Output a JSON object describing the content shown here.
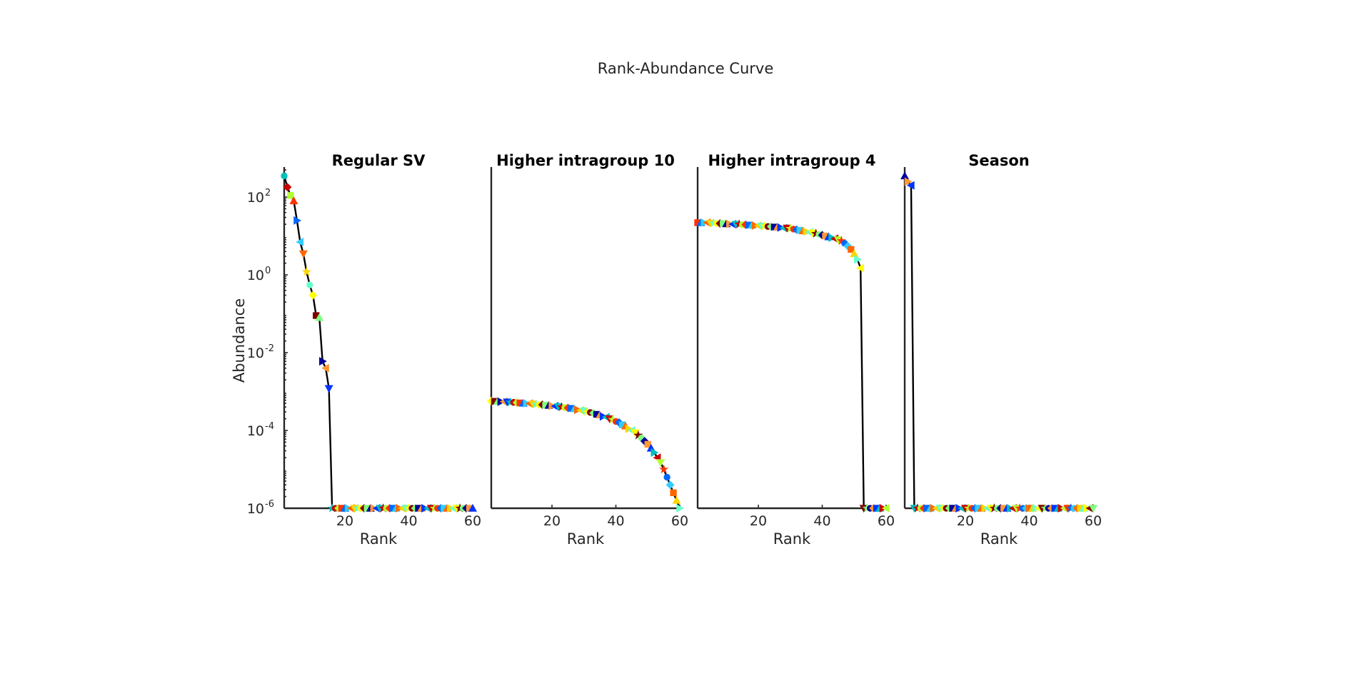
{
  "figure": {
    "title": "Rank-Abundance Curve"
  },
  "chart_data": [
    {
      "type": "line",
      "title": "Regular SV",
      "xlabel": "Rank",
      "ylabel": "Abundance",
      "yscale": "log",
      "xlim": [
        1,
        60
      ],
      "ylim": [
        1e-06,
        500
      ],
      "xticks": [
        20,
        40,
        60
      ],
      "yticks_exponents": [
        -6,
        -4,
        -2,
        0,
        2
      ],
      "yticks_visible": true,
      "x": [
        1,
        2,
        3,
        4,
        5,
        6,
        7,
        8,
        9,
        10,
        11,
        12,
        13,
        14,
        15,
        16,
        17,
        18,
        19,
        20,
        21,
        22,
        23,
        24,
        25,
        26,
        27,
        28,
        29,
        30,
        31,
        32,
        33,
        34,
        35,
        36,
        37,
        38,
        39,
        40,
        41,
        42,
        43,
        44,
        45,
        46,
        47,
        48,
        49,
        50,
        51,
        52,
        53,
        54,
        55,
        56,
        57,
        58,
        59,
        60
      ],
      "y": [
        350,
        180,
        110,
        80,
        25,
        7,
        3.5,
        1.2,
        0.55,
        0.3,
        0.09,
        0.08,
        0.006,
        0.004,
        0.0012,
        1e-06,
        1e-06,
        1e-06,
        1e-06,
        1e-06,
        1e-06,
        1e-06,
        1e-06,
        1e-06,
        1e-06,
        1e-06,
        1e-06,
        1e-06,
        1e-06,
        1e-06,
        1e-06,
        1e-06,
        1e-06,
        1e-06,
        1e-06,
        1e-06,
        1e-06,
        1e-06,
        1e-06,
        1e-06,
        1e-06,
        1e-06,
        1e-06,
        1e-06,
        1e-06,
        1e-06,
        1e-06,
        1e-06,
        1e-06,
        1e-06,
        1e-06,
        1e-06,
        1e-06,
        1e-06,
        1e-06,
        1e-06,
        1e-06,
        1e-06,
        1e-06,
        1e-06
      ]
    },
    {
      "type": "line",
      "title": "Higher intragroup 10",
      "xlabel": "Rank",
      "ylabel": "",
      "yscale": "log",
      "xlim": [
        1,
        60
      ],
      "ylim": [
        1e-06,
        500
      ],
      "xticks": [
        20,
        40,
        60
      ],
      "yticks_exponents": [
        -6,
        -4,
        -2,
        0,
        2
      ],
      "yticks_visible": false,
      "x": [
        1,
        2,
        3,
        4,
        5,
        6,
        7,
        8,
        9,
        10,
        11,
        12,
        13,
        14,
        15,
        16,
        17,
        18,
        19,
        20,
        21,
        22,
        23,
        24,
        25,
        26,
        27,
        28,
        29,
        30,
        31,
        32,
        33,
        34,
        35,
        36,
        37,
        38,
        39,
        40,
        41,
        42,
        43,
        44,
        45,
        46,
        47,
        48,
        49,
        50,
        51,
        52,
        53,
        54,
        55,
        56,
        57,
        58,
        59,
        60
      ],
      "y": [
        0.00057,
        0.00056,
        0.00056,
        0.00055,
        0.00055,
        0.00054,
        0.00053,
        0.00053,
        0.00052,
        0.00051,
        0.0005,
        0.0005,
        0.00049,
        0.00048,
        0.00047,
        0.00046,
        0.00046,
        0.00045,
        0.00044,
        0.00043,
        0.00042,
        0.00041,
        0.0004,
        0.00039,
        0.00038,
        0.00037,
        0.00036,
        0.00034,
        0.00033,
        0.00032,
        0.0003,
        0.00029,
        0.00028,
        0.00026,
        0.00025,
        0.00023,
        0.00022,
        0.0002,
        0.00019,
        0.00017,
        0.00016,
        0.00014,
        0.00013,
        0.00011,
        0.0001,
        8.8e-05,
        7.5e-05,
        6.4e-05,
        5.3e-05,
        4.4e-05,
        3.5e-05,
        2.7e-05,
        2e-05,
        1.5e-05,
        1e-05,
        6.3e-06,
        4e-06,
        2.5e-06,
        1.6e-06,
        1e-06
      ]
    },
    {
      "type": "line",
      "title": "Higher intragroup 4",
      "xlabel": "Rank",
      "ylabel": "",
      "yscale": "log",
      "xlim": [
        1,
        60
      ],
      "ylim": [
        1e-06,
        500
      ],
      "xticks": [
        20,
        40,
        60
      ],
      "yticks_exponents": [
        -6,
        -4,
        -2,
        0,
        2
      ],
      "yticks_visible": false,
      "x": [
        1,
        2,
        3,
        4,
        5,
        6,
        7,
        8,
        9,
        10,
        11,
        12,
        13,
        14,
        15,
        16,
        17,
        18,
        19,
        20,
        21,
        22,
        23,
        24,
        25,
        26,
        27,
        28,
        29,
        30,
        31,
        32,
        33,
        34,
        35,
        36,
        37,
        38,
        39,
        40,
        41,
        42,
        43,
        44,
        45,
        46,
        47,
        48,
        49,
        50,
        51,
        52,
        53,
        54,
        55,
        56,
        57,
        58,
        59,
        60
      ],
      "y": [
        22,
        22,
        22,
        22,
        21.5,
        21.5,
        21,
        21,
        21,
        20.5,
        20.5,
        20,
        20,
        20,
        19.5,
        19.5,
        19,
        19,
        18.5,
        18.5,
        18,
        18,
        17.5,
        17.5,
        17,
        17,
        16.5,
        16,
        16,
        15.5,
        15,
        14.5,
        14,
        13.5,
        13,
        12.5,
        12,
        11.5,
        11,
        10.5,
        10,
        9.5,
        9,
        8.5,
        8,
        7.5,
        6.5,
        5.5,
        4.5,
        3.5,
        2.5,
        1.5,
        1e-06,
        1e-06,
        1e-06,
        1e-06,
        1e-06,
        1e-06,
        1e-06,
        1e-06
      ]
    },
    {
      "type": "line",
      "title": "Season",
      "xlabel": "Rank",
      "ylabel": "",
      "yscale": "log",
      "xlim": [
        1,
        60
      ],
      "ylim": [
        1e-06,
        500
      ],
      "xticks": [
        20,
        40,
        60
      ],
      "yticks_exponents": [
        -6,
        -4,
        -2,
        0,
        2
      ],
      "yticks_visible": false,
      "x": [
        1,
        2,
        3,
        4,
        5,
        6,
        7,
        8,
        9,
        10,
        11,
        12,
        13,
        14,
        15,
        16,
        17,
        18,
        19,
        20,
        21,
        22,
        23,
        24,
        25,
        26,
        27,
        28,
        29,
        30,
        31,
        32,
        33,
        34,
        35,
        36,
        37,
        38,
        39,
        40,
        41,
        42,
        43,
        44,
        45,
        46,
        47,
        48,
        49,
        50,
        51,
        52,
        53,
        54,
        55,
        56,
        57,
        58,
        59,
        60
      ],
      "y": [
        350,
        250,
        200,
        1e-06,
        1e-06,
        1e-06,
        1e-06,
        1e-06,
        1e-06,
        1e-06,
        1e-06,
        1e-06,
        1e-06,
        1e-06,
        1e-06,
        1e-06,
        1e-06,
        1e-06,
        1e-06,
        1e-06,
        1e-06,
        1e-06,
        1e-06,
        1e-06,
        1e-06,
        1e-06,
        1e-06,
        1e-06,
        1e-06,
        1e-06,
        1e-06,
        1e-06,
        1e-06,
        1e-06,
        1e-06,
        1e-06,
        1e-06,
        1e-06,
        1e-06,
        1e-06,
        1e-06,
        1e-06,
        1e-06,
        1e-06,
        1e-06,
        1e-06,
        1e-06,
        1e-06,
        1e-06,
        1e-06,
        1e-06,
        1e-06,
        1e-06,
        1e-06,
        1e-06,
        1e-06,
        1e-06,
        1e-06,
        1e-06,
        1e-06
      ]
    }
  ],
  "marker_colors": [
    "#00bfbf",
    "#ff9933",
    "#80ff80",
    "#ffff00",
    "#ffd400",
    "#33ccff",
    "#ff3300",
    "#cc0000",
    "#0033ff",
    "#000099",
    "#800000",
    "#66ffcc",
    "#ff6600",
    "#0066ff",
    "#b3ff33"
  ],
  "marker_shapes": [
    "circle",
    "diamond",
    "square",
    "triangle-up",
    "triangle-right",
    "triangle-left",
    "triangle-down",
    "star"
  ]
}
